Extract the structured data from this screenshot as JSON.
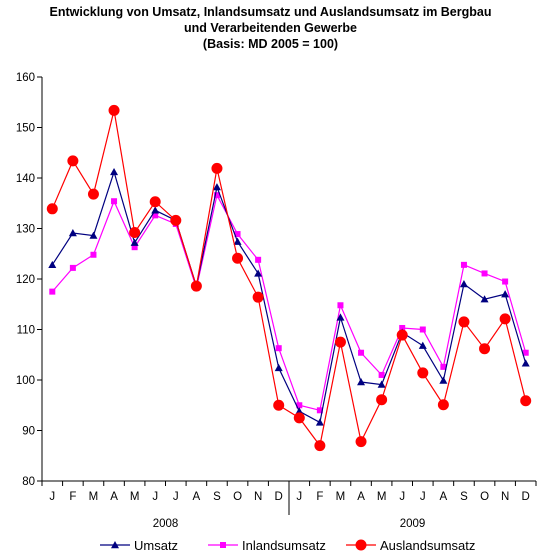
{
  "title_lines": [
    "Entwicklung von Umsatz, Inlandsumsatz und Auslandsumsatz im Bergbau",
    "und Verarbeitenden Gewerbe",
    "(Basis: MD 2005 = 100)"
  ],
  "chart_data": {
    "type": "line",
    "x": [
      "J",
      "F",
      "M",
      "A",
      "M",
      "J",
      "J",
      "A",
      "S",
      "O",
      "N",
      "D",
      "J",
      "F",
      "M",
      "A",
      "M",
      "J",
      "J",
      "A",
      "S",
      "O",
      "N",
      "D"
    ],
    "year_labels": [
      "2008",
      "2009"
    ],
    "ylim": [
      80,
      160
    ],
    "yticks": [
      80,
      90,
      100,
      110,
      120,
      130,
      140,
      150,
      160
    ],
    "grid": false,
    "legend_position": "bottom",
    "series": [
      {
        "name": "Umsatz",
        "color": "#000080",
        "marker": "triangle",
        "values": [
          122.8,
          129.1,
          128.6,
          141.2,
          127.2,
          133.6,
          131.6,
          118.6,
          138.2,
          127.4,
          121.1,
          102.4,
          93.8,
          91.6,
          112.4,
          99.6,
          99.1,
          109.4,
          106.8,
          99.9,
          119.0,
          116.0,
          117.0,
          103.3
        ]
      },
      {
        "name": "Inlandsumsatz",
        "color": "#ff00ff",
        "marker": "square",
        "values": [
          117.5,
          122.2,
          124.8,
          135.4,
          126.3,
          132.6,
          130.9,
          118.2,
          136.6,
          128.9,
          123.8,
          106.3,
          95.0,
          94.0,
          114.8,
          105.4,
          101.0,
          110.3,
          110.0,
          102.6,
          122.8,
          121.1,
          119.5,
          105.4
        ]
      },
      {
        "name": "Auslandsumsatz",
        "color": "#ff0000",
        "marker": "circle",
        "values": [
          133.9,
          143.4,
          136.8,
          153.4,
          129.2,
          135.3,
          131.6,
          118.6,
          141.9,
          124.1,
          116.4,
          95.0,
          92.5,
          87.0,
          107.5,
          87.8,
          96.1,
          108.9,
          101.4,
          95.1,
          111.5,
          106.2,
          112.1,
          95.9
        ]
      }
    ]
  }
}
